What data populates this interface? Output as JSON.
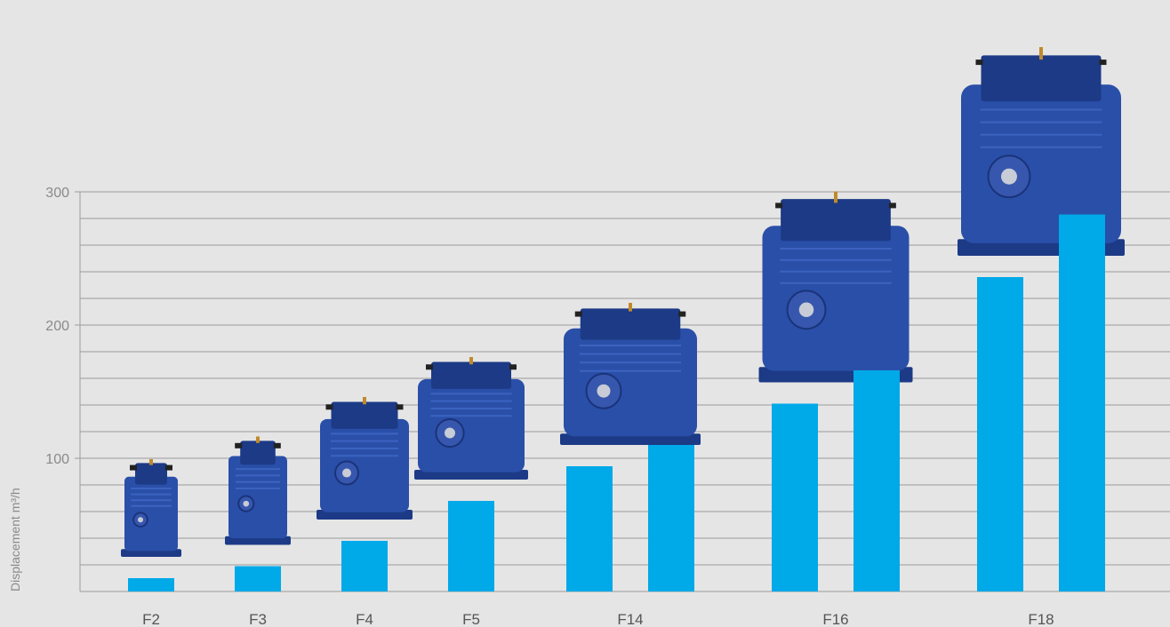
{
  "chart_data": {
    "type": "bar",
    "ylabel": "Displacement m³/h",
    "ylim": [
      0,
      300
    ],
    "yticks": [
      100,
      200,
      300
    ],
    "grid": true,
    "categories": [
      "F2",
      "F3",
      "F4",
      "F5",
      "F14",
      "F16",
      "F18"
    ],
    "groups": [
      {
        "label": "F2",
        "values": [
          10
        ]
      },
      {
        "label": "F3",
        "values": [
          19
        ]
      },
      {
        "label": "F4",
        "values": [
          38
        ]
      },
      {
        "label": "F5",
        "values": [
          68
        ]
      },
      {
        "label": "F14",
        "values": [
          94,
          110
        ]
      },
      {
        "label": "F16",
        "values": [
          141,
          166
        ]
      },
      {
        "label": "F18",
        "values": [
          236,
          283
        ]
      }
    ]
  },
  "colors": {
    "background": "#e5e5e5",
    "bar": "#00a9e8",
    "grid": "#9a9a9a",
    "compressor_body": "#2a4fa8",
    "compressor_dark": "#1c3a86"
  },
  "images": [
    {
      "name": "F2 compressor"
    },
    {
      "name": "F3 compressor"
    },
    {
      "name": "F4 compressor"
    },
    {
      "name": "F5 compressor"
    },
    {
      "name": "F14 compressor"
    },
    {
      "name": "F16 compressor"
    },
    {
      "name": "F18 compressor"
    }
  ]
}
